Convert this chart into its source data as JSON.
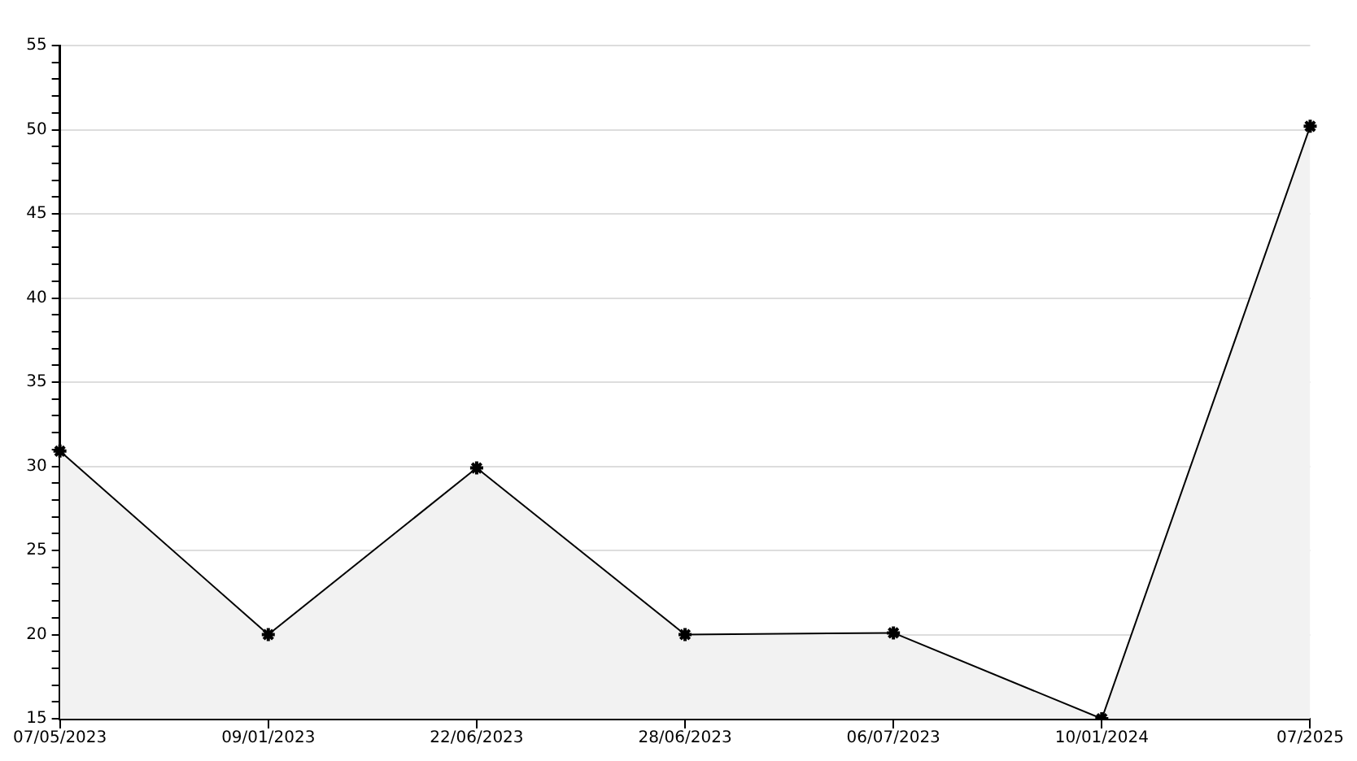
{
  "chart_data": {
    "type": "area",
    "categories": [
      "07/05/2023",
      "09/01/2023",
      "22/06/2023",
      "28/06/2023",
      "06/07/2023",
      "10/01/2024",
      "07/2025"
    ],
    "series": [
      {
        "color": "#000000",
        "values": [
          30.9,
          20,
          29.9,
          20,
          20.1,
          15,
          50.2
        ]
      }
    ],
    "ylim": [
      15,
      55
    ],
    "yticks": [
      15,
      {
        "value": 16,
        "label": null
      },
      {
        "value": 17,
        "label": null
      },
      {
        "value": 18,
        "label": null
      },
      {
        "value": 19,
        "label": null
      },
      20,
      {
        "value": 21,
        "label": null
      },
      {
        "value": 22,
        "label": null
      },
      {
        "value": 23,
        "label": null
      },
      {
        "value": 24,
        "label": null
      },
      25,
      {
        "value": 26,
        "label": null
      },
      {
        "value": 27,
        "label": null
      },
      {
        "value": 28,
        "label": null
      },
      {
        "value": 29,
        "label": null
      },
      30,
      {
        "value": 31,
        "label": null
      },
      {
        "value": 32,
        "label": null
      },
      {
        "value": 33,
        "label": null
      },
      {
        "value": 34,
        "label": null
      },
      35,
      {
        "value": 36,
        "label": null
      },
      {
        "value": 37,
        "label": null
      },
      {
        "value": 38,
        "label": null
      },
      {
        "value": 39,
        "label": null
      },
      40,
      {
        "value": 41,
        "label": null
      },
      {
        "value": 42,
        "label": null
      },
      {
        "value": 43,
        "label": null
      },
      {
        "value": 44,
        "label": null
      },
      45,
      {
        "value": 46,
        "label": null
      },
      {
        "value": 47,
        "label": null
      },
      {
        "value": 48,
        "label": null
      },
      {
        "value": 49,
        "label": null
      },
      50,
      {
        "value": 51,
        "label": null
      },
      {
        "value": 52,
        "label": null
      },
      {
        "value": 53,
        "label": null
      },
      {
        "value": 54,
        "label": null
      },
      55
    ],
    "grid": "y",
    "legend": false,
    "marker": "cross",
    "line_style": "solid"
  }
}
